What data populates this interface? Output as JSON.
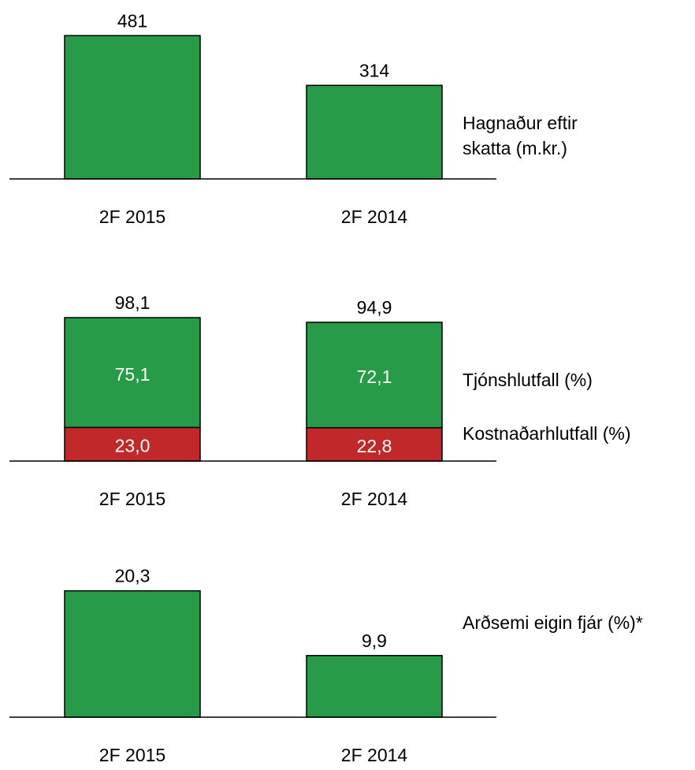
{
  "chart_data": [
    {
      "type": "bar",
      "categories": [
        "2F 2015",
        "2F 2014"
      ],
      "series": [
        {
          "name": [
            "Hagnaður eftir",
            "skatta (m.kr.)"
          ],
          "color": "#279b48",
          "values": [
            481,
            314
          ]
        }
      ],
      "ylim": [
        0,
        500
      ]
    },
    {
      "type": "bar",
      "stacked": true,
      "categories": [
        "2F 2015",
        "2F 2014"
      ],
      "series": [
        {
          "name": "Kostnaðarhlutfall (%)",
          "color": "#c0282a",
          "values": [
            23.0,
            22.8
          ],
          "value_labels": [
            "23,0",
            "22,8"
          ]
        },
        {
          "name": "Tjónshlutfall (%)",
          "color": "#279b48",
          "values": [
            75.1,
            72.1
          ],
          "value_labels": [
            "75,1",
            "72,1"
          ]
        }
      ],
      "totals": [
        98.1,
        94.9
      ],
      "total_labels": [
        "98,1",
        "94,9"
      ],
      "ylim": [
        0,
        100
      ]
    },
    {
      "type": "bar",
      "categories": [
        "2F 2015",
        "2F 2014"
      ],
      "series": [
        {
          "name": "Arðsemi eigin fjár (%)*",
          "color": "#279b48",
          "values": [
            20.3,
            9.9
          ],
          "value_labels": [
            "20,3",
            "9,9"
          ]
        }
      ],
      "ylim": [
        0,
        25
      ]
    }
  ]
}
